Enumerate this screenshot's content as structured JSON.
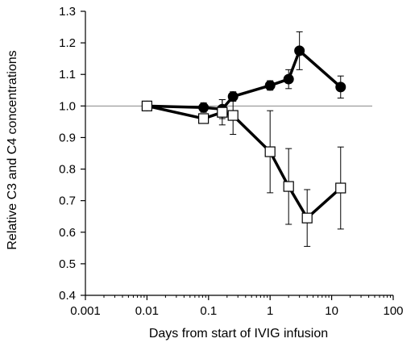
{
  "chart_data": {
    "type": "line",
    "title": "",
    "xlabel": "Days from start of IVIG infusion",
    "ylabel": "Relative C3 and C4 concentrations",
    "xscale": "log",
    "xlim": [
      0.001,
      100
    ],
    "ylim": [
      0.4,
      1.3
    ],
    "x_tick_labels": [
      "0.001",
      "0.01",
      "0.1",
      "1",
      "10",
      "100"
    ],
    "y_tick_labels": [
      "0.4",
      "0.5",
      "0.6",
      "0.7",
      "0.8",
      "0.9",
      "1.0",
      "1.1",
      "1.2",
      "1.3"
    ],
    "reference_line": 1.0,
    "grid": false,
    "series": [
      {
        "marker": "filled-circle",
        "color": "#000000",
        "x": [
          0.01,
          0.083,
          0.167,
          0.25,
          1,
          2,
          3,
          14
        ],
        "y": [
          1.0,
          0.995,
          0.99,
          1.03,
          1.065,
          1.085,
          1.175,
          1.06
        ],
        "err": [
          0,
          0.015,
          0.03,
          0.015,
          0.015,
          0.03,
          0.06,
          0.035
        ]
      },
      {
        "marker": "open-square",
        "color": "#000000",
        "x": [
          0.01,
          0.083,
          0.167,
          0.25,
          1,
          2,
          4,
          14
        ],
        "y": [
          1.0,
          0.96,
          0.98,
          0.97,
          0.855,
          0.745,
          0.645,
          0.74
        ],
        "err": [
          0,
          0,
          0.04,
          0.06,
          0.13,
          0.12,
          0.09,
          0.13
        ]
      }
    ]
  }
}
